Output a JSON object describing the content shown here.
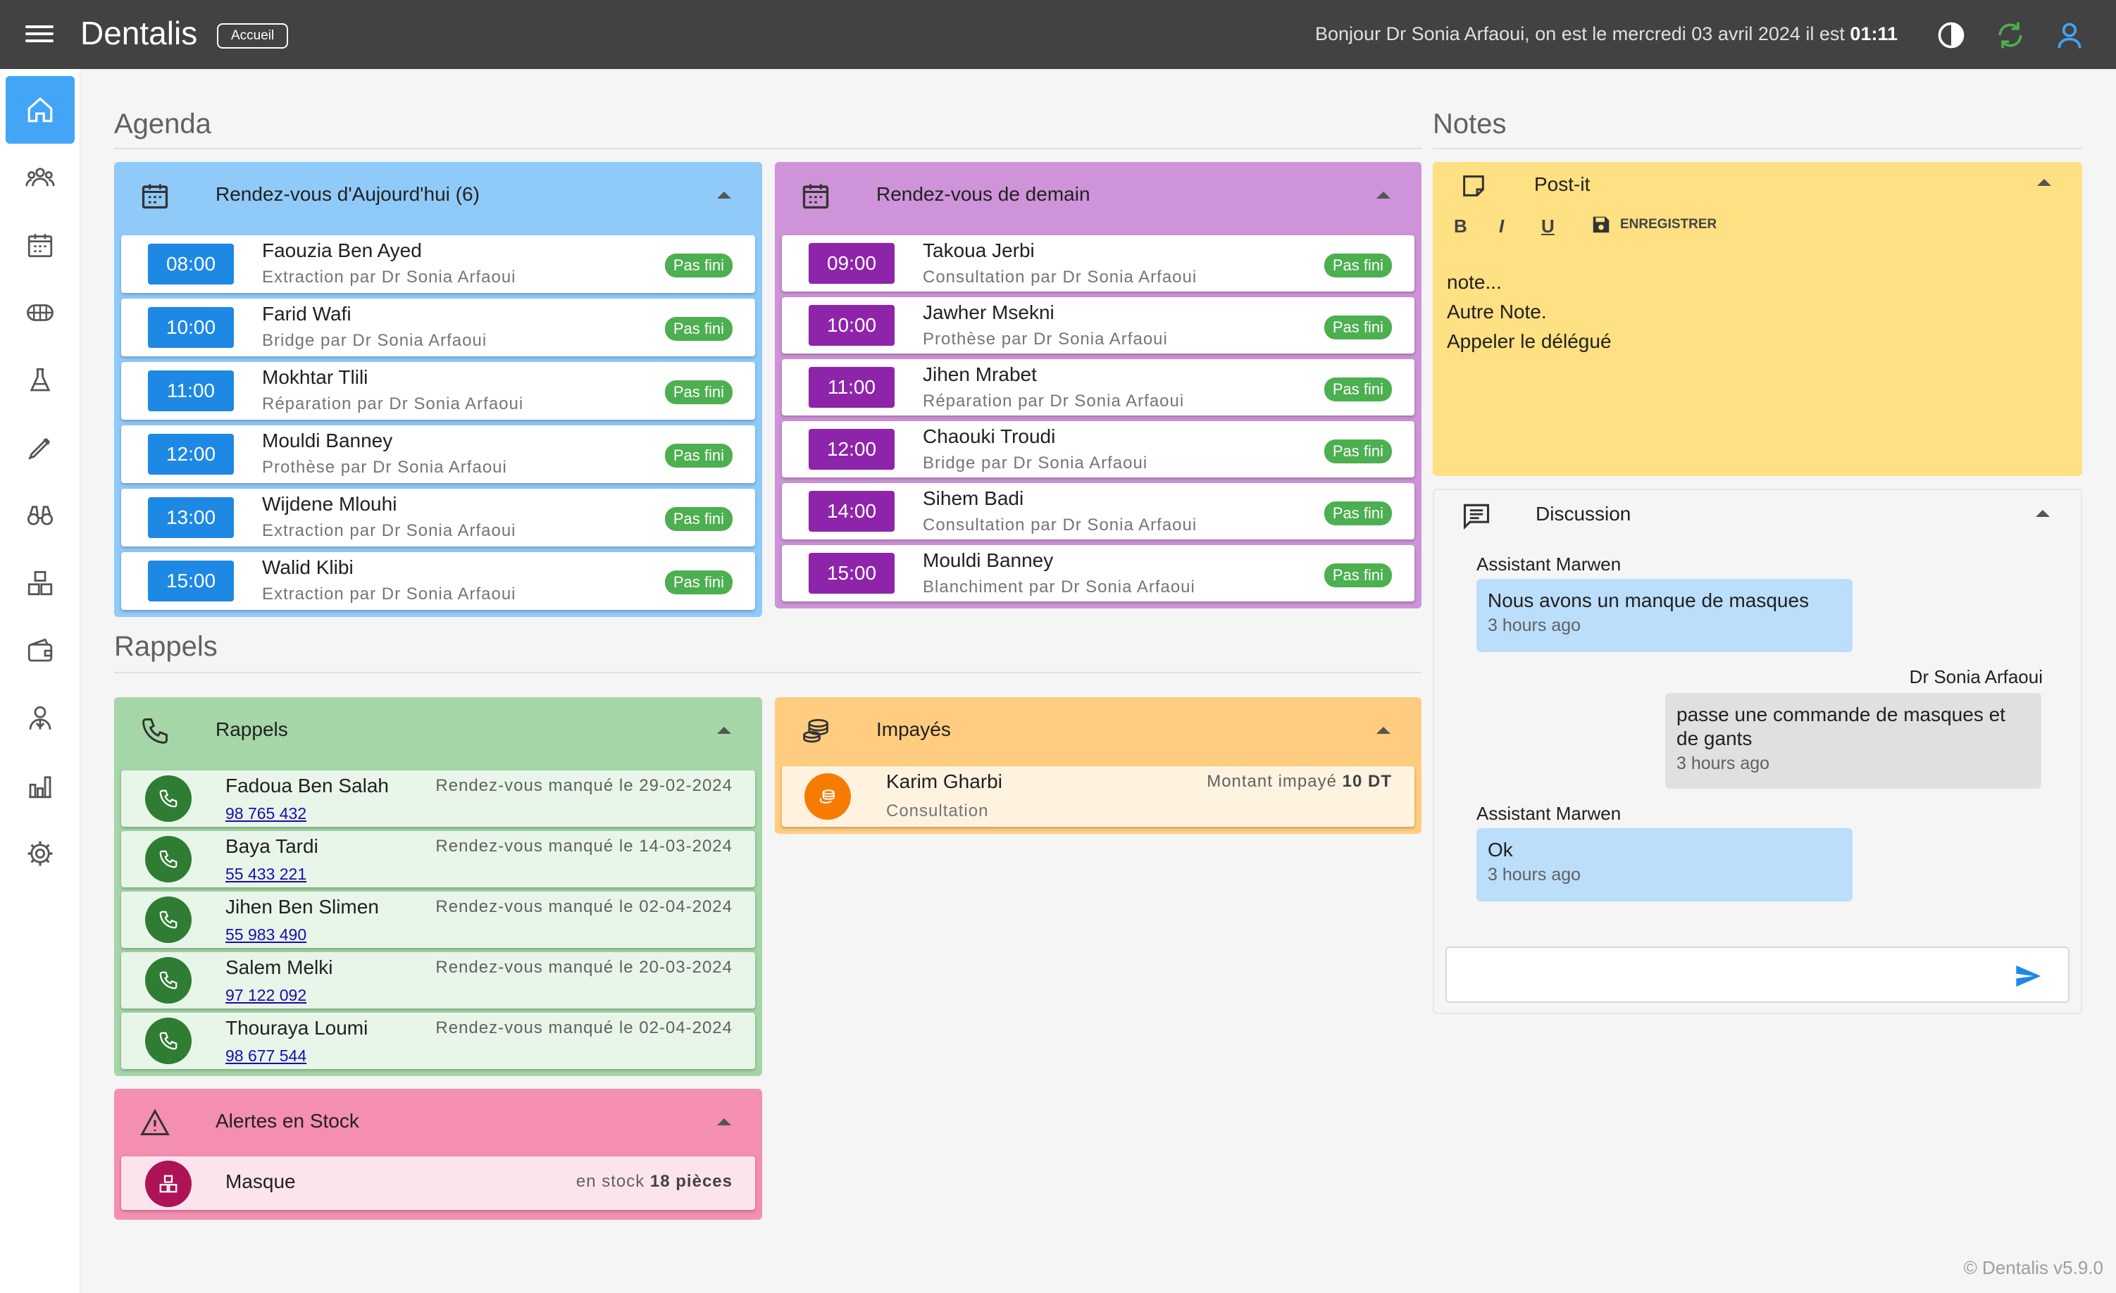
{
  "app": {
    "title": "Dentalis",
    "home_chip": "Accueil",
    "greeting_prefix": "Bonjour Dr Sonia Arfaoui, on est le mercredi 03 avril 2024 il est",
    "time": "01:11",
    "footer": "© Dentalis v5.9.0"
  },
  "colors": {
    "topbar": "#424242",
    "today": "#90caf9",
    "tomorrow": "#ce93d8",
    "rappels": "#a5d6a7",
    "impayes": "#ffcc80",
    "alertes": "#f48fb1",
    "postit": "#ffe082"
  },
  "sidebar": {
    "icons": [
      "home-icon",
      "patients-icon",
      "calendar-icon",
      "denture-icon",
      "lab-icon",
      "prosthesis-icon",
      "binoculars-icon",
      "boxes-icon",
      "wallet-icon",
      "staff-icon",
      "stats-icon",
      "settings-icon"
    ]
  },
  "agenda": {
    "title": "Agenda",
    "today": {
      "title": "Rendez-vous d'Aujourd'hui (6)",
      "items": [
        {
          "time": "08:00",
          "name": "Faouzia Ben Ayed",
          "sub": "Extraction par Dr Sonia Arfaoui",
          "status": "Pas fini"
        },
        {
          "time": "10:00",
          "name": "Farid Wafi",
          "sub": "Bridge par Dr Sonia Arfaoui",
          "status": "Pas fini"
        },
        {
          "time": "11:00",
          "name": "Mokhtar Tlili",
          "sub": "Réparation par Dr Sonia Arfaoui",
          "status": "Pas fini"
        },
        {
          "time": "12:00",
          "name": "Mouldi Banney",
          "sub": "Prothèse par Dr Sonia Arfaoui",
          "status": "Pas fini"
        },
        {
          "time": "13:00",
          "name": "Wijdene Mlouhi",
          "sub": "Extraction par Dr Sonia Arfaoui",
          "status": "Pas fini"
        },
        {
          "time": "15:00",
          "name": "Walid Klibi",
          "sub": "Extraction par Dr Sonia Arfaoui",
          "status": "Pas fini"
        }
      ]
    },
    "tomorrow": {
      "title": "Rendez-vous de demain",
      "items": [
        {
          "time": "09:00",
          "name": "Takoua Jerbi",
          "sub": "Consultation par Dr Sonia Arfaoui",
          "status": "Pas fini"
        },
        {
          "time": "10:00",
          "name": "Jawher Msekni",
          "sub": "Prothèse par Dr Sonia Arfaoui",
          "status": "Pas fini"
        },
        {
          "time": "11:00",
          "name": "Jihen Mrabet",
          "sub": "Réparation par Dr Sonia Arfaoui",
          "status": "Pas fini"
        },
        {
          "time": "12:00",
          "name": "Chaouki Troudi",
          "sub": "Bridge par Dr Sonia Arfaoui",
          "status": "Pas fini"
        },
        {
          "time": "14:00",
          "name": "Sihem Badi",
          "sub": "Consultation par Dr Sonia Arfaoui",
          "status": "Pas fini"
        },
        {
          "time": "15:00",
          "name": "Mouldi Banney",
          "sub": "Blanchiment par Dr Sonia Arfaoui",
          "status": "Pas fini"
        }
      ]
    }
  },
  "rappels": {
    "section_title": "Rappels",
    "panel_title": "Rappels",
    "items": [
      {
        "name": "Fadoua Ben Salah",
        "phone": "98 765 432",
        "note": "Rendez-vous manqué le 29-02-2024"
      },
      {
        "name": "Baya Tardi",
        "phone": "55 433 221",
        "note": "Rendez-vous manqué le 14-03-2024"
      },
      {
        "name": "Jihen Ben Slimen",
        "phone": "55 983 490",
        "note": "Rendez-vous manqué le 02-04-2024"
      },
      {
        "name": "Salem Melki",
        "phone": "97 122 092",
        "note": "Rendez-vous manqué le 20-03-2024"
      },
      {
        "name": "Thouraya Loumi",
        "phone": "98 677 544",
        "note": "Rendez-vous manqué le 02-04-2024"
      }
    ]
  },
  "impayes": {
    "title": "Impayés",
    "items": [
      {
        "name": "Karim Gharbi",
        "sub": "Consultation",
        "label": "Montant impayé",
        "amount": "10 DT"
      }
    ]
  },
  "alertes": {
    "title": "Alertes en Stock",
    "items": [
      {
        "name": "Masque",
        "label": "en stock",
        "qty": "18 pièces"
      }
    ]
  },
  "notes": {
    "title": "Notes",
    "postit": {
      "title": "Post-it",
      "bold": "B",
      "italic": "I",
      "underline": "U",
      "save": "ENREGISTRER",
      "lines": [
        "note...",
        "Autre Note.",
        "Appeler le délégué"
      ]
    },
    "discussion": {
      "title": "Discussion",
      "messages": [
        {
          "author": "Assistant Marwen",
          "text": "Nous avons un manque de masques",
          "ago": "3 hours ago"
        },
        {
          "author": "Dr Sonia Arfaoui",
          "text": "passe une commande de masques et de gants",
          "ago": "3 hours ago"
        },
        {
          "author": "Assistant Marwen",
          "text": "Ok",
          "ago": "3 hours ago"
        }
      ],
      "input_placeholder": ""
    }
  }
}
